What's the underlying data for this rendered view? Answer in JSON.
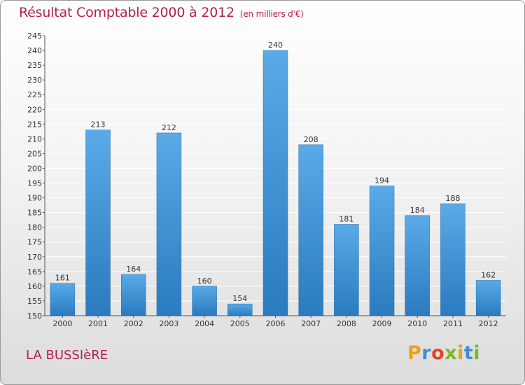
{
  "header": {
    "title": "Résultat Comptable 2000 à 2012",
    "subtitle": "(en milliers d'€)"
  },
  "footer": {
    "location": "LA BUSSIèRE",
    "logo_letters": [
      "P",
      "r",
      "o",
      "x",
      "i",
      "t",
      "i"
    ],
    "logo_colors": [
      "#e8a317",
      "#3c8fd3",
      "#e0452a",
      "#7bb82a",
      "#e8a317",
      "#3c8fd3",
      "#7bb82a"
    ]
  },
  "colors": {
    "title": "#b3204a",
    "bar_light": "#5aaae8",
    "bar_dark": "#2a7bbf",
    "grid": "#ffffff",
    "axis": "#555555"
  },
  "chart_data": {
    "type": "bar",
    "title": "Résultat Comptable 2000 à 2012",
    "xlabel": "",
    "ylabel": "",
    "categories": [
      "2000",
      "2001",
      "2002",
      "2003",
      "2004",
      "2005",
      "2006",
      "2007",
      "2008",
      "2009",
      "2010",
      "2011",
      "2012"
    ],
    "values": [
      161,
      213,
      164,
      212,
      160,
      154,
      240,
      208,
      181,
      194,
      184,
      188,
      162
    ],
    "ylim": [
      150,
      245
    ],
    "ytick_step": 5,
    "grid": true
  }
}
